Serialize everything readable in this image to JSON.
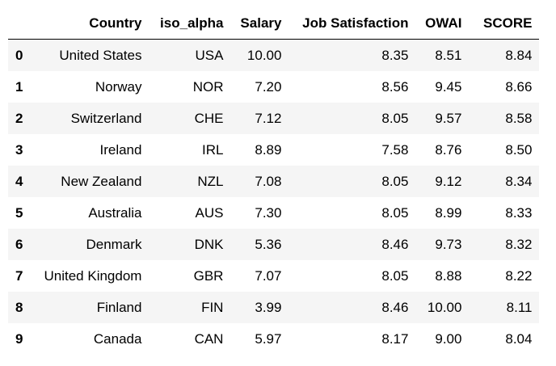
{
  "table": {
    "index_header": "",
    "columns": [
      "Country",
      "iso_alpha",
      "Salary",
      "Job Satisfaction",
      "OWAI",
      "SCORE"
    ],
    "rows": [
      {
        "index": "0",
        "cells": [
          "United States",
          "USA",
          "10.00",
          "8.35",
          "8.51",
          "8.84"
        ]
      },
      {
        "index": "1",
        "cells": [
          "Norway",
          "NOR",
          "7.20",
          "8.56",
          "9.45",
          "8.66"
        ]
      },
      {
        "index": "2",
        "cells": [
          "Switzerland",
          "CHE",
          "7.12",
          "8.05",
          "9.57",
          "8.58"
        ]
      },
      {
        "index": "3",
        "cells": [
          "Ireland",
          "IRL",
          "8.89",
          "7.58",
          "8.76",
          "8.50"
        ]
      },
      {
        "index": "4",
        "cells": [
          "New Zealand",
          "NZL",
          "7.08",
          "8.05",
          "9.12",
          "8.34"
        ]
      },
      {
        "index": "5",
        "cells": [
          "Australia",
          "AUS",
          "7.30",
          "8.05",
          "8.99",
          "8.33"
        ]
      },
      {
        "index": "6",
        "cells": [
          "Denmark",
          "DNK",
          "5.36",
          "8.46",
          "9.73",
          "8.32"
        ]
      },
      {
        "index": "7",
        "cells": [
          "United Kingdom",
          "GBR",
          "7.07",
          "8.05",
          "8.88",
          "8.22"
        ]
      },
      {
        "index": "8",
        "cells": [
          "Finland",
          "FIN",
          "3.99",
          "8.46",
          "10.00",
          "8.11"
        ]
      },
      {
        "index": "9",
        "cells": [
          "Canada",
          "CAN",
          "5.97",
          "8.17",
          "9.00",
          "8.04"
        ]
      }
    ]
  }
}
